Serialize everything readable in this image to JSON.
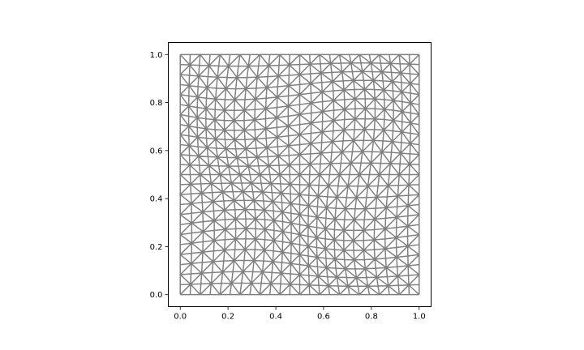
{
  "chart_data": {
    "type": "mesh",
    "title": "",
    "xlabel": "",
    "ylabel": "",
    "xlim": [
      -0.05,
      1.05
    ],
    "ylim": [
      -0.05,
      1.05
    ],
    "aspect": "equal",
    "grid": false,
    "legend": "none",
    "mesh": {
      "kind": "triangular",
      "divisions_x": 24,
      "divisions_y": 24,
      "distortion": "sine-sine",
      "distortion_amplitude": 0.025,
      "line_color": "#808080"
    },
    "xticks": [
      {
        "value": 0.0,
        "label": "0.0"
      },
      {
        "value": 0.2,
        "label": "0.2"
      },
      {
        "value": 0.4,
        "label": "0.4"
      },
      {
        "value": 0.6,
        "label": "0.6"
      },
      {
        "value": 0.8,
        "label": "0.8"
      },
      {
        "value": 1.0,
        "label": "1.0"
      }
    ],
    "yticks": [
      {
        "value": 0.0,
        "label": "0.0"
      },
      {
        "value": 0.2,
        "label": "0.2"
      },
      {
        "value": 0.4,
        "label": "0.4"
      },
      {
        "value": 0.6,
        "label": "0.6"
      },
      {
        "value": 0.8,
        "label": "0.8"
      },
      {
        "value": 1.0,
        "label": "1.0"
      }
    ]
  }
}
